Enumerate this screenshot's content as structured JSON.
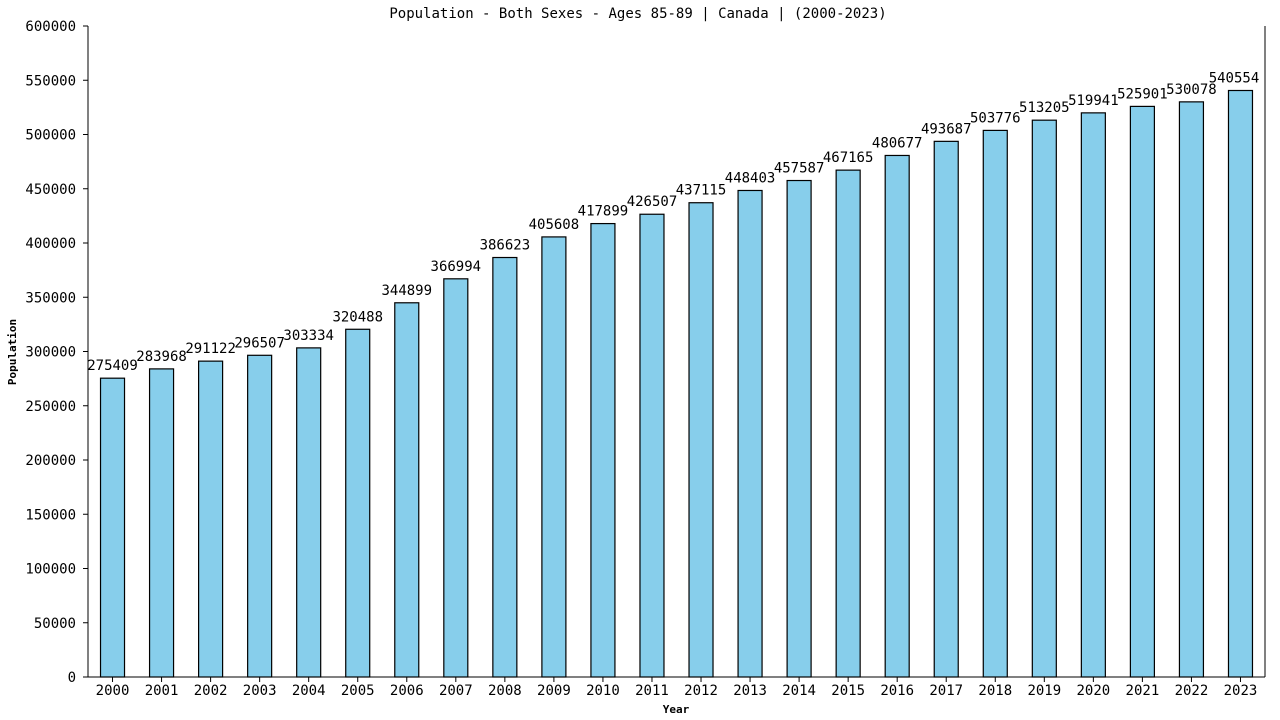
{
  "chart_data": {
    "type": "bar",
    "title": "Population - Both Sexes - Ages 85-89 | Canada |  (2000-2023)",
    "xlabel": "Year",
    "ylabel": "Population",
    "ylim": [
      0,
      600000
    ],
    "yticks": [
      0,
      50000,
      100000,
      150000,
      200000,
      250000,
      300000,
      350000,
      400000,
      450000,
      500000,
      550000,
      600000
    ],
    "categories": [
      "2000",
      "2001",
      "2002",
      "2003",
      "2004",
      "2005",
      "2006",
      "2007",
      "2008",
      "2009",
      "2010",
      "2011",
      "2012",
      "2013",
      "2014",
      "2015",
      "2016",
      "2017",
      "2018",
      "2019",
      "2020",
      "2021",
      "2022",
      "2023"
    ],
    "values": [
      275409,
      283968,
      291122,
      296507,
      303334,
      320488,
      344899,
      366994,
      386623,
      405608,
      417899,
      426507,
      437115,
      448403,
      457587,
      467165,
      480677,
      493687,
      503776,
      513205,
      519941,
      525901,
      530078,
      540554
    ],
    "bar_color": "#87ceeb",
    "bar_edge_color": "#000000",
    "grid": false,
    "legend": "none"
  }
}
